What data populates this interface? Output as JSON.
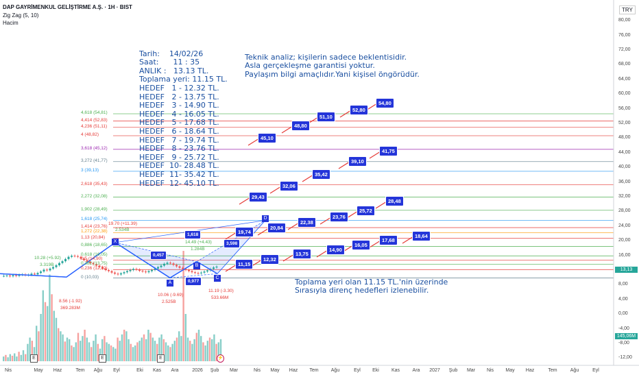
{
  "header": {
    "title": "DAP GAYRİMENKUL GELİŞTİRME A.Ş. · 1H · BIST",
    "indicator1": "Zig Zag (5, 10)",
    "indicator2": "Hacim",
    "currency": "TRY"
  },
  "info_box": {
    "date": "Tarih:    14/02/26",
    "time": "Saat:      11 : 35",
    "now": "ANLIK :   13.13 TL.",
    "accumulation": "Toplama yeri: 11.15 TL.",
    "targets": [
      "HEDEF   1 - 12.32 TL.",
      "HEDEF   2 - 13.75 TL.",
      "HEDEF   3 - 14.90 TL.",
      "HEDEF   4 - 16.05 TL.",
      "HEDEF   5 - 17.68 TL.",
      "HEDEF   6 - 18.64 TL.",
      "HEDEF   7 - 19.74 TL.",
      "HEDEF   8 - 23.76 TL.",
      "HEDEF   9 - 25.72 TL.",
      "HEDEF  10- 28.48 TL.",
      "HEDEF  11- 35.42 TL.",
      "HEDEF  12- 45.10 TL."
    ]
  },
  "disclaimer": [
    "Teknik analiz; kişilerin sadece beklentisidir.",
    "Asla gerçekleşme garantisi yoktur.",
    "Paylaşım bilgi amaçlıdır.Yani kişisel öngörüdür."
  ],
  "bottom_note": [
    "Toplama yeri olan 11.15 TL.'nin üzerinde",
    "Sırasıyla direnç hedefleri izlenebilir."
  ],
  "price_axis": [
    "80,00",
    "76,00",
    "72,00",
    "68,00",
    "64,00",
    "60,00",
    "56,00",
    "52,00",
    "48,00",
    "44,00",
    "40,00",
    "36,00",
    "32,00",
    "28,00",
    "24,00",
    "20,00",
    "16,00",
    "12,00",
    "8,00",
    "4,00",
    "0,00",
    "-4,00",
    "-8,00",
    "-12,00"
  ],
  "current_price": "13,13",
  "volume_tag": "145,06M",
  "time_axis": [
    "Nis",
    "May",
    "Haz",
    "Tem",
    "Ağu",
    "Eyl",
    "Eki",
    "Kas",
    "Ara",
    "2026",
    "Şub",
    "Mar",
    "Nis",
    "May",
    "Haz",
    "Tem",
    "Ağu",
    "Eyl",
    "Eki",
    "Kas",
    "Ara",
    "2027",
    "Şub",
    "Mar",
    "Nis",
    "May",
    "Haz",
    "Tem",
    "Ağu",
    "Eyl"
  ],
  "fib_levels": [
    {
      "label": "4,618 (54,81)",
      "color": "#4caf50"
    },
    {
      "label": "4,414 (52,83)",
      "color": "#e53935"
    },
    {
      "label": "4,236 (51,11)",
      "color": "#e53935"
    },
    {
      "label": "4 (48,82)",
      "color": "#e53935"
    },
    {
      "label": "3,618 (45,12)",
      "color": "#9c27b0"
    },
    {
      "label": "3,272 (41,77)",
      "color": "#607d8b"
    },
    {
      "label": "3 (39,13)",
      "color": "#2196f3"
    },
    {
      "label": "2,618 (35,43)",
      "color": "#e53935"
    },
    {
      "label": "2,272 (32,08)",
      "color": "#4caf50"
    },
    {
      "label": "1,902 (28,49)",
      "color": "#4caf50"
    },
    {
      "label": "1,618 (25,74)",
      "color": "#2196f3"
    },
    {
      "label": "1,414 (23,76)",
      "color": "#e53935"
    },
    {
      "label": "1,272 (22,38)",
      "color": "#ff9800"
    },
    {
      "label": "1,13 (20,84)",
      "color": "#e53935"
    },
    {
      "label": "0,886 (18,65)",
      "color": "#4caf50"
    },
    {
      "label": "0,618 (16,05)",
      "color": "#4caf50"
    },
    {
      "label": "0,5 (14,90)",
      "color": "#e53935"
    },
    {
      "label": "0,382 (13,75)",
      "color": "#4caf50"
    },
    {
      "label": "0,236 (12,32)",
      "color": "#e53935"
    },
    {
      "label": "0 (10,03)",
      "color": "#607d8b"
    }
  ],
  "target_boxes": [
    "11,15",
    "12,32",
    "13,75",
    "14,90",
    "16,05",
    "17,68",
    "18,64",
    "19,74",
    "20,84",
    "22,38",
    "23,76",
    "25,72",
    "28,48",
    "29,43",
    "32,06",
    "35,42",
    "39,10",
    "41,75",
    "45,10",
    "48,80",
    "51,10",
    "52,80",
    "54,80"
  ],
  "ratio_labels": [
    "1,618",
    "0,457",
    "0,977",
    "3,598"
  ],
  "pattern_points": [
    "X",
    "A",
    "B",
    "C",
    "D"
  ],
  "annotations": {
    "left_high": "10.28 (+5.92)",
    "left_high_vol": "3.319B",
    "left_low": "8.56 (-1.92)",
    "left_low_vol": "369.283M",
    "mid_low": "10.06 (-9.69)",
    "mid_low_vol": "2.525B",
    "b_high": "14.49 (+4.43)",
    "b_high_vol": "1.284B",
    "c_low": "11.19 (-3.30)",
    "c_low_vol": "533.66M",
    "x_high": "19.70 (+11.39)",
    "x_high_vol": "2.534B"
  },
  "colors": {
    "up": "#26a69a",
    "down": "#ef5350",
    "zigzag": "#2962ff",
    "note": "#1a4fa0",
    "target": "#2435d9"
  }
}
